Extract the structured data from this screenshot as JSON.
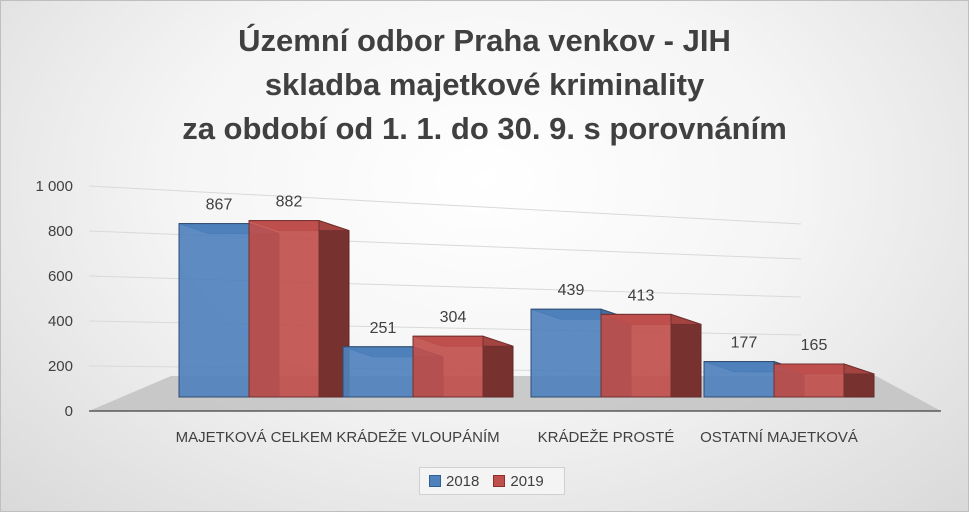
{
  "chart_data": {
    "type": "bar",
    "title_lines": [
      "Územní odbor Praha venkov - JIH",
      "skladba majetkové kriminality",
      "za období od 1. 1. do 30. 9. s porovnáním"
    ],
    "categories": [
      "MAJETKOVÁ CELKEM",
      "KRÁDEŽE VLOUPÁNÍM",
      "KRÁDEŽE PROSTÉ",
      "OSTATNÍ MAJETKOVÁ"
    ],
    "series": [
      {
        "name": "2018",
        "values": [
          867,
          251,
          439,
          177
        ],
        "color": "#4f81bd"
      },
      {
        "name": "2019",
        "values": [
          882,
          304,
          413,
          165
        ],
        "color": "#c0504d"
      }
    ],
    "y_ticks": [
      "0",
      "200",
      "400",
      "600",
      "800",
      "1 000"
    ],
    "ylim": [
      0,
      1000
    ],
    "grid": true,
    "legend_position": "bottom",
    "style_3d": true
  }
}
